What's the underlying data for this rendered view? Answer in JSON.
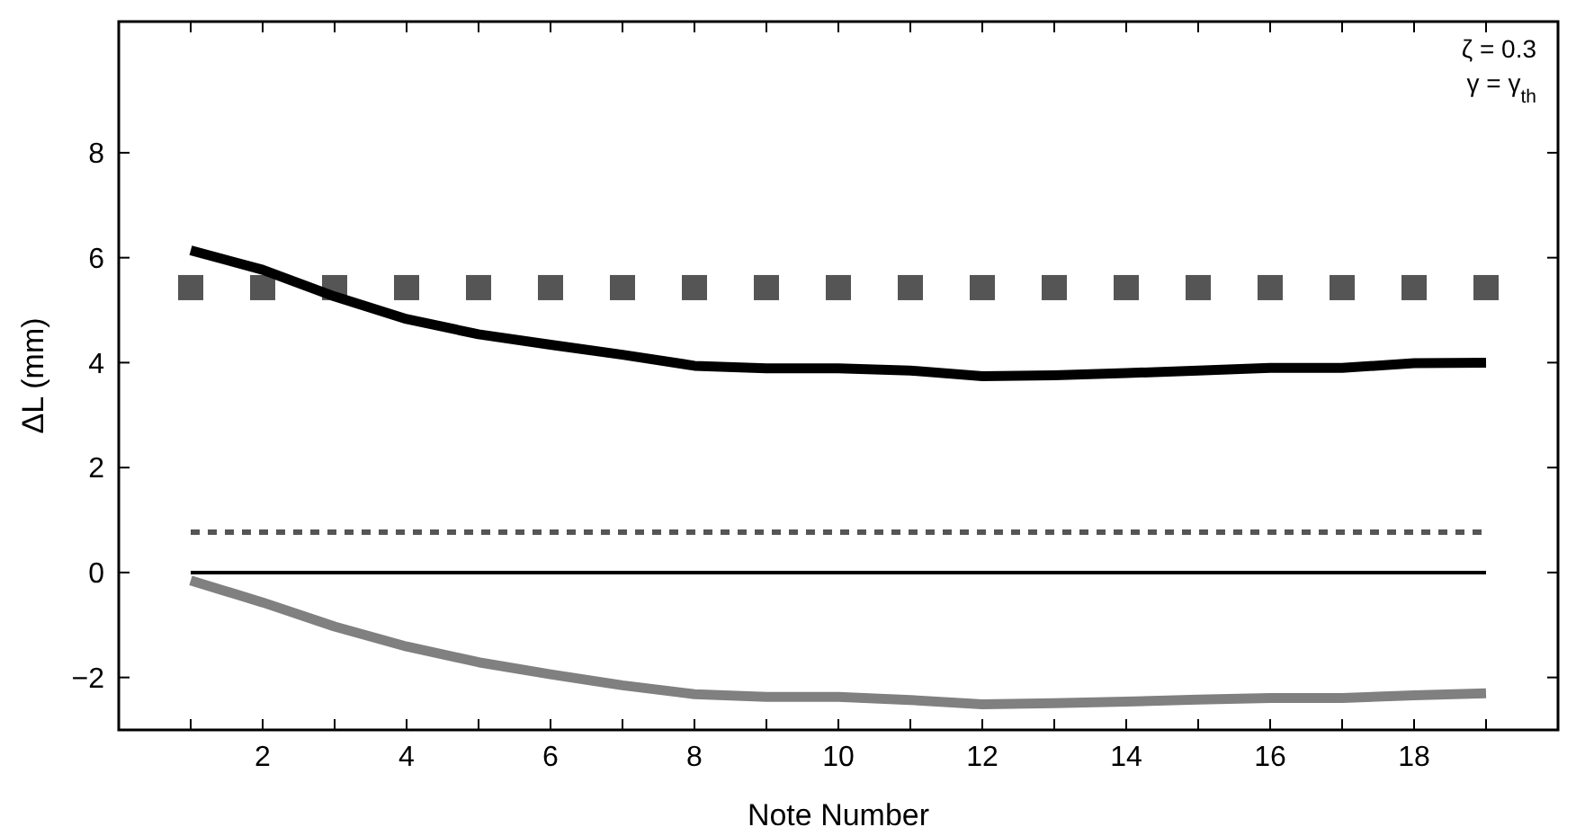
{
  "chart_data": {
    "type": "line",
    "xlabel": "Note Number",
    "ylabel": "ΔL (mm)",
    "annotations": [
      "ζ = 0.3",
      "γ = γ$_{th}$"
    ],
    "x": [
      1,
      2,
      3,
      4,
      5,
      6,
      7,
      8,
      9,
      10,
      11,
      12,
      13,
      14,
      15,
      16,
      17,
      18,
      19
    ],
    "series": [
      {
        "type": "scatter",
        "marker": "square",
        "color": "#555555",
        "values": [
          5.43,
          5.43,
          5.43,
          5.43,
          5.43,
          5.43,
          5.43,
          5.43,
          5.43,
          5.43,
          5.43,
          5.43,
          5.43,
          5.43,
          5.43,
          5.43,
          5.43,
          5.43,
          5.43
        ]
      },
      {
        "color": "#000000",
        "values": [
          6.14,
          5.77,
          5.26,
          4.83,
          4.54,
          4.34,
          4.15,
          3.94,
          3.89,
          3.89,
          3.85,
          3.74,
          3.76,
          3.8,
          3.85,
          3.9,
          3.9,
          3.99,
          4.0
        ]
      },
      {
        "color": "#555555",
        "line_style": "dotted",
        "values": [
          0.77,
          0.77,
          0.77,
          0.77,
          0.77,
          0.77,
          0.77,
          0.77,
          0.77,
          0.77,
          0.77,
          0.77,
          0.77,
          0.77,
          0.77,
          0.77,
          0.77,
          0.77,
          0.77
        ]
      },
      {
        "color": "#000000",
        "line_style": "solid",
        "values": [
          0,
          0,
          0,
          0,
          0,
          0,
          0,
          0,
          0,
          0,
          0,
          0,
          0,
          0,
          0,
          0,
          0,
          0,
          0
        ]
      },
      {
        "color": "#808080",
        "values": [
          -0.15,
          -0.57,
          -1.03,
          -1.41,
          -1.71,
          -1.94,
          -2.15,
          -2.32,
          -2.37,
          -2.37,
          -2.43,
          -2.51,
          -2.49,
          -2.46,
          -2.42,
          -2.39,
          -2.39,
          -2.34,
          -2.3
        ]
      }
    ],
    "marker": "none",
    "grid": false,
    "xlim": [
      0,
      20
    ],
    "xticks": [
      {
        "value": 1,
        "label": null
      },
      2,
      {
        "value": 3,
        "label": null
      },
      4,
      {
        "value": 5,
        "label": null
      },
      6,
      {
        "value": 7,
        "label": null
      },
      8,
      {
        "value": 9,
        "label": null
      },
      10,
      {
        "value": 11,
        "label": null
      },
      12,
      {
        "value": 13,
        "label": null
      },
      14,
      {
        "value": 15,
        "label": null
      },
      16,
      {
        "value": 17,
        "label": null
      },
      18,
      {
        "value": 19,
        "label": null
      }
    ],
    "ylim": [
      -3,
      10.5
    ],
    "yticks": [
      -2,
      0,
      2,
      4,
      6,
      8
    ]
  }
}
